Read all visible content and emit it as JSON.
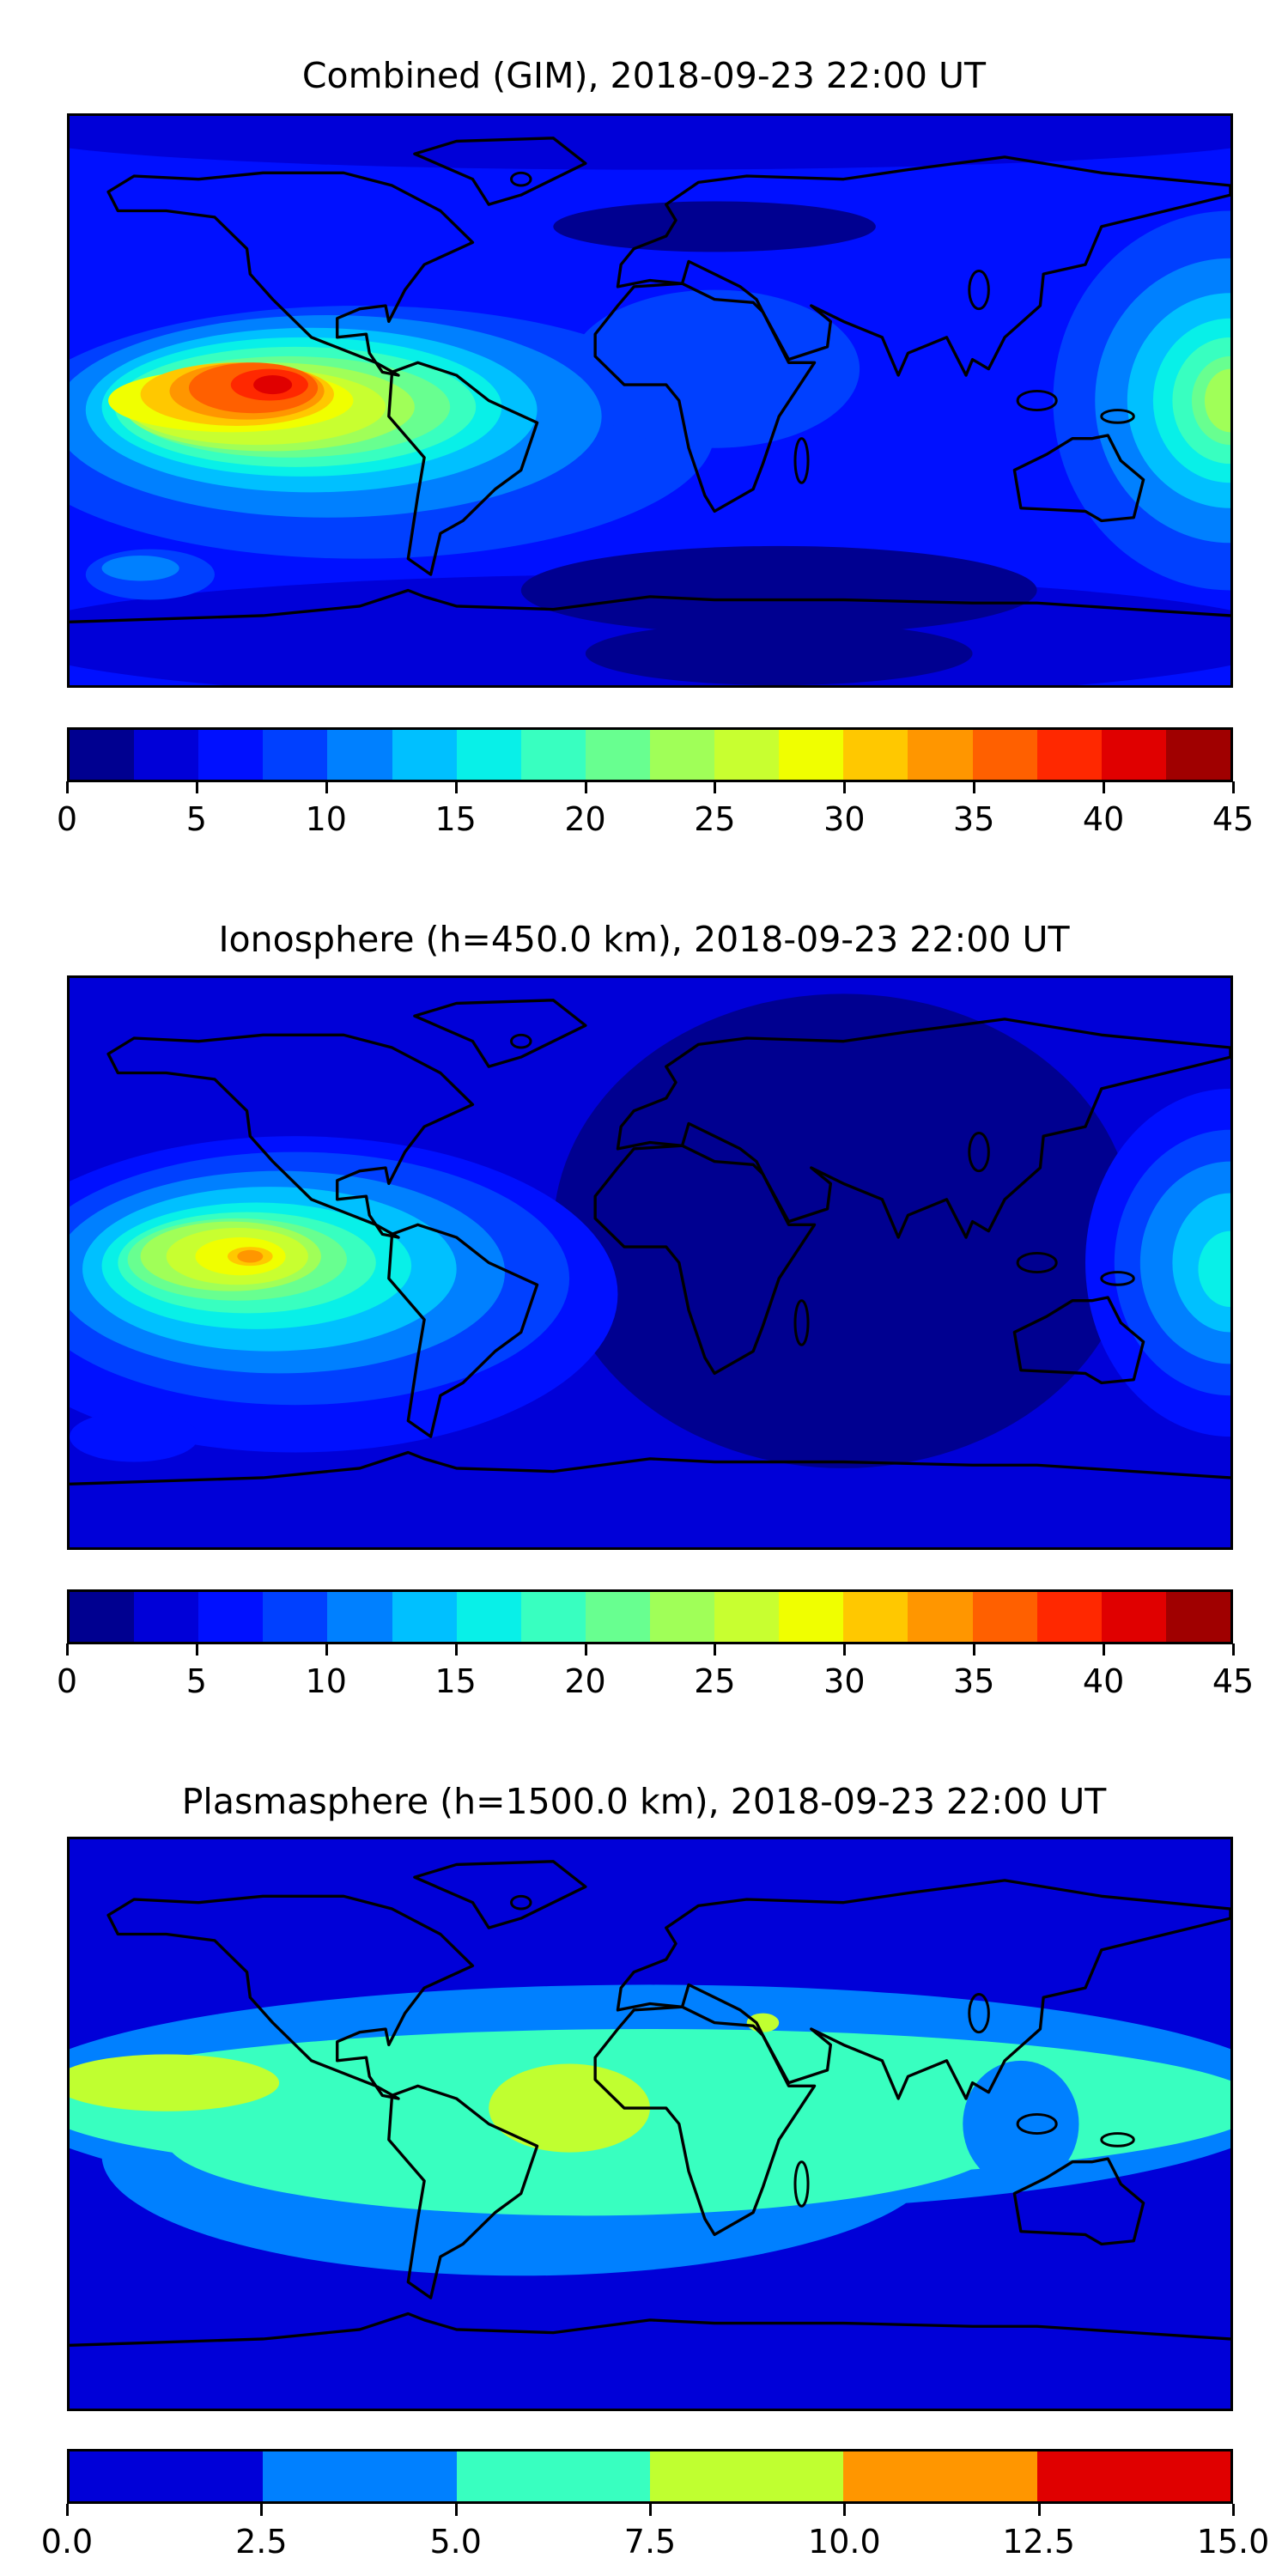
{
  "chart_data": [
    {
      "type": "heatmap",
      "title": "Combined (GIM), 2018-09-23 22:00 UT",
      "colorbar": {
        "ticks": [
          "0",
          "5",
          "10",
          "15",
          "20",
          "25",
          "30",
          "35",
          "40",
          "45"
        ],
        "range": [
          0,
          45
        ],
        "levels": 18,
        "colors": [
          "#000090",
          "#0000d8",
          "#0010ff",
          "#0040ff",
          "#0080ff",
          "#00c0ff",
          "#08f0e8",
          "#38ffc0",
          "#68ff90",
          "#a0ff58",
          "#c8ff30",
          "#f0ff00",
          "#ffc800",
          "#ff9600",
          "#ff6000",
          "#ff2800",
          "#e00000",
          "#a00000"
        ]
      },
      "max_region": "eastern Pacific, near equator (~40)",
      "min_region": "southern Indian Ocean / Antarctica (~0-2.5)"
    },
    {
      "type": "heatmap",
      "title": "Ionosphere  (h=450.0 km), 2018-09-23 22:00 UT",
      "colorbar": {
        "ticks": [
          "0",
          "5",
          "10",
          "15",
          "20",
          "25",
          "30",
          "35",
          "40",
          "45"
        ],
        "range": [
          0,
          45
        ],
        "levels": 18,
        "colors": [
          "#000090",
          "#0000d8",
          "#0010ff",
          "#0040ff",
          "#0080ff",
          "#00c0ff",
          "#08f0e8",
          "#38ffc0",
          "#68ff90",
          "#a0ff58",
          "#c8ff30",
          "#f0ff00",
          "#ffc800",
          "#ff9600",
          "#ff6000",
          "#ff2800",
          "#e00000",
          "#a00000"
        ]
      },
      "max_region": "eastern Pacific, near equator (~32.5-35)",
      "min_region": "Africa / Indian Ocean (~0-2.5)"
    },
    {
      "type": "heatmap",
      "title": "Plasmasphere (h=1500.0 km), 2018-09-23 22:00 UT",
      "colorbar": {
        "ticks": [
          "0.0",
          "2.5",
          "5.0",
          "7.5",
          "10.0",
          "12.5",
          "15.0"
        ],
        "range": [
          0,
          15
        ],
        "levels": 6,
        "colors": [
          "#0000d8",
          "#0080ff",
          "#38ffc0",
          "#c0ff30",
          "#ff9600",
          "#e00000"
        ]
      },
      "max_region": "South Atlantic / central Pacific (7.5-10)",
      "min_region": "high latitudes (0-2.5)"
    }
  ]
}
